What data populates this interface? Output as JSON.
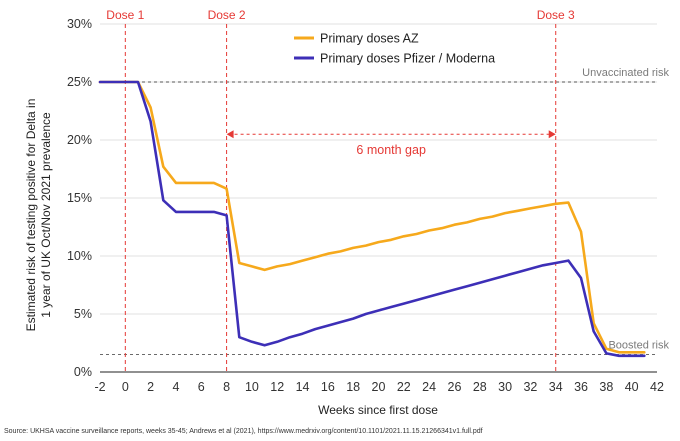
{
  "chart_data": {
    "type": "line",
    "title": "",
    "xlabel": "Weeks since first dose",
    "ylabel_lines": [
      "Estimated risk of testing positive for Delta in",
      "1 year of UK Oct/Nov 2021 prevalence"
    ],
    "xlim": [
      -2,
      42
    ],
    "ylim": [
      0,
      30
    ],
    "x_ticks": [
      -2,
      0,
      2,
      4,
      6,
      8,
      10,
      12,
      14,
      16,
      18,
      20,
      22,
      24,
      26,
      28,
      30,
      32,
      34,
      36,
      38,
      40,
      42
    ],
    "y_ticks": [
      0,
      5,
      10,
      15,
      20,
      25,
      30
    ],
    "y_tick_labels": [
      "0%",
      "5%",
      "10%",
      "15%",
      "20%",
      "25%",
      "30%"
    ],
    "series": [
      {
        "name": "Primary doses AZ",
        "color": "#F6A91C",
        "x": [
          -2,
          1,
          2,
          3,
          4,
          5,
          6,
          7,
          8,
          9,
          10,
          11,
          12,
          13,
          14,
          15,
          16,
          17,
          18,
          19,
          20,
          21,
          22,
          23,
          24,
          25,
          26,
          27,
          28,
          29,
          30,
          31,
          32,
          33,
          34,
          35,
          36,
          37,
          38,
          39,
          40,
          41
        ],
        "values": [
          25,
          25,
          22.8,
          17.7,
          16.3,
          16.3,
          16.3,
          16.3,
          15.8,
          9.4,
          9.1,
          8.8,
          9.1,
          9.3,
          9.6,
          9.9,
          10.2,
          10.4,
          10.7,
          10.9,
          11.2,
          11.4,
          11.7,
          11.9,
          12.2,
          12.4,
          12.7,
          12.9,
          13.2,
          13.4,
          13.7,
          13.9,
          14.1,
          14.3,
          14.5,
          14.6,
          12.1,
          4.2,
          2.0,
          1.7,
          1.7,
          1.7
        ]
      },
      {
        "name": "Primary doses Pfizer / Moderna",
        "color": "#3D2FB7",
        "x": [
          -2,
          1,
          2,
          3,
          4,
          5,
          6,
          7,
          8,
          9,
          10,
          11,
          12,
          13,
          14,
          15,
          16,
          17,
          18,
          19,
          20,
          21,
          22,
          23,
          24,
          25,
          26,
          27,
          28,
          29,
          30,
          31,
          32,
          33,
          34,
          35,
          36,
          37,
          38,
          39,
          40,
          41
        ],
        "values": [
          25,
          25,
          21.6,
          14.8,
          13.8,
          13.8,
          13.8,
          13.8,
          13.5,
          3.0,
          2.6,
          2.3,
          2.6,
          3.0,
          3.3,
          3.7,
          4.0,
          4.3,
          4.6,
          5.0,
          5.3,
          5.6,
          5.9,
          6.2,
          6.5,
          6.8,
          7.1,
          7.4,
          7.7,
          8.0,
          8.3,
          8.6,
          8.9,
          9.2,
          9.4,
          9.6,
          8.1,
          3.5,
          1.6,
          1.4,
          1.4,
          1.4
        ]
      }
    ],
    "reference_lines": [
      {
        "label": "Unvaccinated risk",
        "y": 25
      },
      {
        "label": "Boosted risk",
        "y": 1.5
      }
    ],
    "dose_markers": [
      {
        "label": "Dose 1",
        "x": 0
      },
      {
        "label": "Dose 2",
        "x": 8
      },
      {
        "label": "Dose 3",
        "x": 34
      }
    ],
    "gap_annotation": {
      "label": "6 month gap",
      "x_start": 8,
      "x_end": 34,
      "y": 20.5
    },
    "legend_position": "top-center",
    "colors": {
      "dose": "#E53935",
      "reference": "#7A7A7A"
    },
    "source": "Source: UKHSA vaccine surveillance reports, weeks 35-45; Andrews et al (2021), https://www.medrxiv.org/content/10.1101/2021.11.15.21266341v1.full.pdf"
  }
}
